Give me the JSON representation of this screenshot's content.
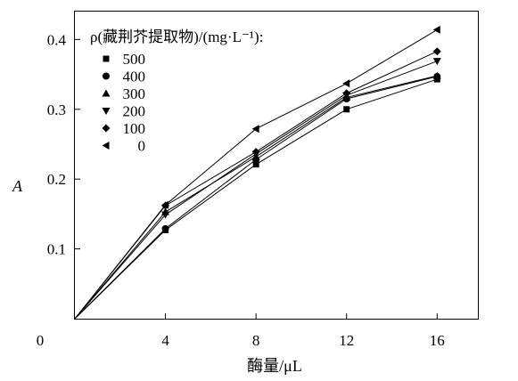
{
  "chart_data": {
    "type": "line",
    "xlabel": "酶量/μL",
    "ylabel": "A",
    "x_ticks": [
      0,
      4,
      8,
      12,
      16
    ],
    "y_ticks": [
      0.1,
      0.2,
      0.3,
      0.4
    ],
    "xlim": [
      0,
      17.8
    ],
    "ylim": [
      0,
      0.44
    ],
    "grid": false,
    "legend": {
      "title": "ρ(藏荆芥提取物)/(mg·L⁻¹):",
      "placement": "top-left"
    },
    "series": [
      {
        "name": "500",
        "marker": "square",
        "x": [
          0,
          4,
          8,
          12,
          16
        ],
        "y": [
          0,
          0.127,
          0.221,
          0.3,
          0.343
        ]
      },
      {
        "name": "400",
        "marker": "circle",
        "x": [
          0,
          4,
          8,
          12,
          16
        ],
        "y": [
          0,
          0.129,
          0.228,
          0.315,
          0.347
        ]
      },
      {
        "name": "300",
        "marker": "triangle-up",
        "x": [
          0,
          4,
          8,
          12,
          16
        ],
        "y": [
          0,
          0.153,
          0.232,
          0.317,
          0.348
        ]
      },
      {
        "name": "200",
        "marker": "triangle-down",
        "x": [
          0,
          4,
          8,
          12,
          16
        ],
        "y": [
          0,
          0.149,
          0.236,
          0.32,
          0.369
        ]
      },
      {
        "name": "100",
        "marker": "diamond",
        "x": [
          0,
          4,
          8,
          12,
          16
        ],
        "y": [
          0,
          0.162,
          0.239,
          0.323,
          0.383
        ]
      },
      {
        "name": "0",
        "marker": "triangle-left",
        "x": [
          0,
          4,
          8,
          12,
          16
        ],
        "y": [
          0,
          0.163,
          0.272,
          0.337,
          0.414
        ]
      }
    ]
  }
}
